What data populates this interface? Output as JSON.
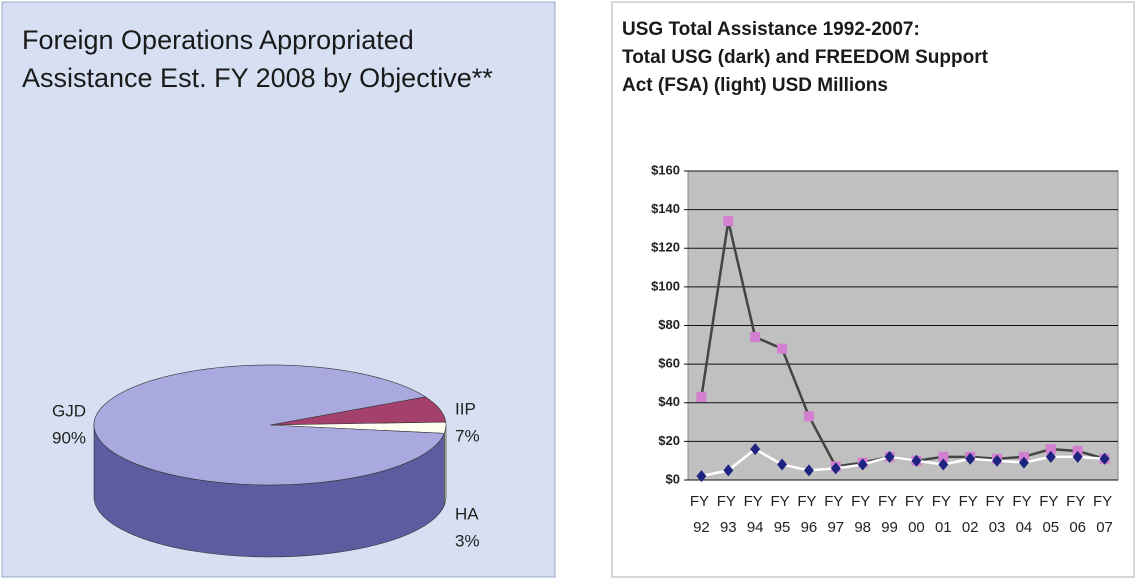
{
  "chart_data": [
    {
      "type": "pie",
      "title": [
        "Foreign Operations Appropriated",
        "Assistance Est. FY 2008 by Objective**"
      ],
      "categories": [
        "GJD",
        "IIP",
        "HA"
      ],
      "values": [
        90,
        7,
        3
      ],
      "value_labels": [
        "90%",
        "7%",
        "3%"
      ],
      "colors": [
        "#a9a9e0",
        "#a3406c",
        "#fffff2"
      ],
      "side_colors": [
        "#5c5ca0",
        "#6e2545",
        "#c8c8b0"
      ]
    },
    {
      "type": "line",
      "title": [
        "USG Total Assistance 1992-2007:",
        "Total USG (dark) and FREEDOM Support",
        "Act (FSA) (light) USD Millions"
      ],
      "categories": [
        "FY 92",
        "FY 93",
        "FY 94",
        "FY 95",
        "FY 96",
        "FY 97",
        "FY 98",
        "FY 99",
        "FY 00",
        "FY 01",
        "FY 02",
        "FY 03",
        "FY 04",
        "FY 05",
        "FY 06",
        "FY 07"
      ],
      "series": [
        {
          "color": "#444444",
          "marker_color": "#d37fcf",
          "marker": "square",
          "values": [
            43,
            134,
            74,
            68,
            33,
            7,
            9,
            12,
            10,
            12,
            12,
            11,
            12,
            16,
            15,
            11
          ]
        },
        {
          "color": "#ffffff",
          "marker_color": "#1c2480",
          "marker": "diamond",
          "values": [
            2,
            5,
            16,
            8,
            5,
            6,
            8,
            12,
            10,
            8,
            11,
            10,
            9,
            12,
            12,
            11
          ]
        }
      ],
      "ylim": [
        0,
        160
      ],
      "yticks": [
        {
          "value": 0,
          "label": "$0"
        },
        {
          "value": 20,
          "label": "$20"
        },
        {
          "value": 40,
          "label": "$40"
        },
        {
          "value": 60,
          "label": "$60"
        },
        {
          "value": 80,
          "label": "$80"
        },
        {
          "value": 100,
          "label": "$100"
        },
        {
          "value": 120,
          "label": "$120"
        },
        {
          "value": 140,
          "label": "$140"
        },
        {
          "value": 160,
          "label": "$160"
        }
      ],
      "grid": true
    }
  ]
}
